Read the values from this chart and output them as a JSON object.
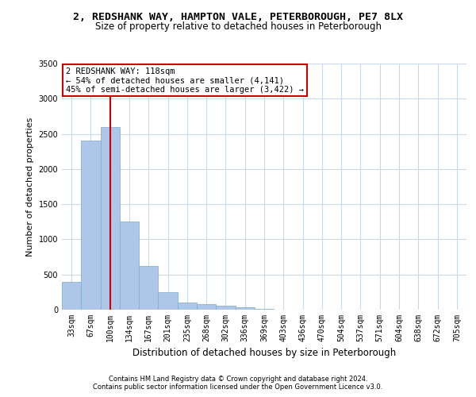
{
  "title_line1": "2, REDSHANK WAY, HAMPTON VALE, PETERBOROUGH, PE7 8LX",
  "title_line2": "Size of property relative to detached houses in Peterborough",
  "xlabel": "Distribution of detached houses by size in Peterborough",
  "ylabel": "Number of detached properties",
  "footnote1": "Contains HM Land Registry data © Crown copyright and database right 2024.",
  "footnote2": "Contains public sector information licensed under the Open Government Licence v3.0.",
  "categories": [
    "33sqm",
    "67sqm",
    "100sqm",
    "134sqm",
    "167sqm",
    "201sqm",
    "235sqm",
    "268sqm",
    "302sqm",
    "336sqm",
    "369sqm",
    "403sqm",
    "436sqm",
    "470sqm",
    "504sqm",
    "537sqm",
    "571sqm",
    "604sqm",
    "638sqm",
    "672sqm",
    "705sqm"
  ],
  "values": [
    400,
    2400,
    2600,
    1250,
    625,
    250,
    100,
    75,
    60,
    30,
    15,
    0,
    0,
    0,
    0,
    0,
    0,
    0,
    0,
    0,
    0
  ],
  "bar_color": "#aec6e8",
  "bar_edge_color": "#7aabcf",
  "annotation_text": "2 REDSHANK WAY: 118sqm\n← 54% of detached houses are smaller (4,141)\n45% of semi-detached houses are larger (3,422) →",
  "annotation_box_color": "#ffffff",
  "annotation_box_edge": "#cc0000",
  "vline_color": "#cc0000",
  "ylim": [
    0,
    3500
  ],
  "yticks": [
    0,
    500,
    1000,
    1500,
    2000,
    2500,
    3000,
    3500
  ],
  "bg_color": "#ffffff",
  "grid_color": "#ccd9e8",
  "title_fontsize": 9.5,
  "subtitle_fontsize": 8.5,
  "ylabel_fontsize": 8,
  "xlabel_fontsize": 8.5,
  "tick_fontsize": 7,
  "footnote_fontsize": 6,
  "annot_fontsize": 7.5
}
